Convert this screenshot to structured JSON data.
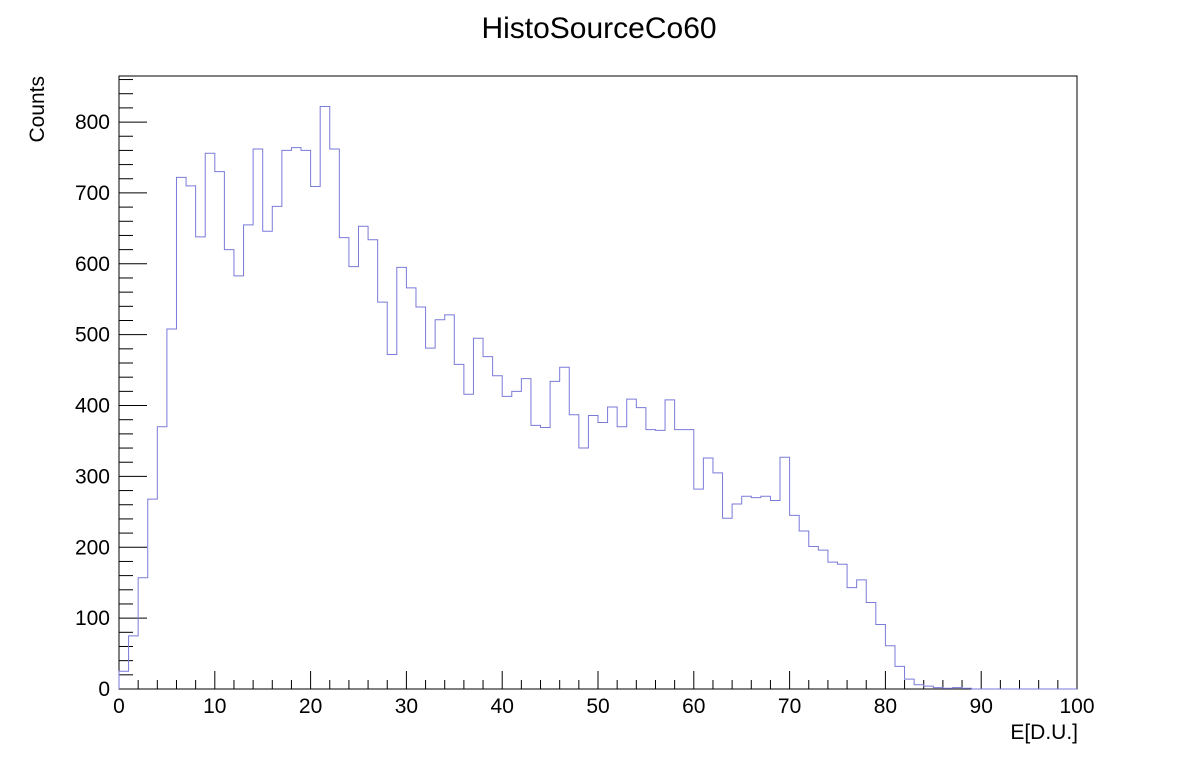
{
  "chart_data": {
    "type": "bar",
    "title": "HistoSourceCo60",
    "xlabel": "E[D.U.]",
    "ylabel": "Counts",
    "xlim": [
      0,
      100
    ],
    "ylim": [
      0,
      865
    ],
    "grid": false,
    "series_color": "#7a7ad9",
    "bin_width": 1,
    "x_ticks": [
      "0",
      "10",
      "20",
      "30",
      "40",
      "50",
      "60",
      "70",
      "80",
      "90",
      "100"
    ],
    "y_ticks": [
      "0",
      "100",
      "200",
      "300",
      "400",
      "500",
      "600",
      "700",
      "800"
    ],
    "series": [
      {
        "values": [
          25,
          75,
          157,
          268,
          370,
          508,
          722,
          710,
          638,
          756,
          730,
          620,
          583,
          655,
          762,
          646,
          681,
          760,
          764,
          760,
          709,
          822,
          762,
          637,
          596,
          653,
          634,
          546,
          472,
          595,
          566,
          539,
          481,
          521,
          528,
          458,
          416,
          495,
          469,
          442,
          413,
          420,
          438,
          372,
          369,
          434,
          454,
          387,
          340,
          386,
          376,
          398,
          370,
          409,
          397,
          366,
          365,
          408,
          366,
          366,
          282,
          326,
          305,
          241,
          261,
          272,
          270,
          272,
          266,
          327,
          245,
          223,
          201,
          196,
          179,
          176,
          143,
          154,
          122,
          91,
          61,
          32,
          14,
          6,
          4,
          2,
          1,
          2,
          1,
          0,
          0,
          0,
          0,
          0,
          0,
          0,
          0,
          0,
          0,
          0
        ]
      }
    ]
  }
}
